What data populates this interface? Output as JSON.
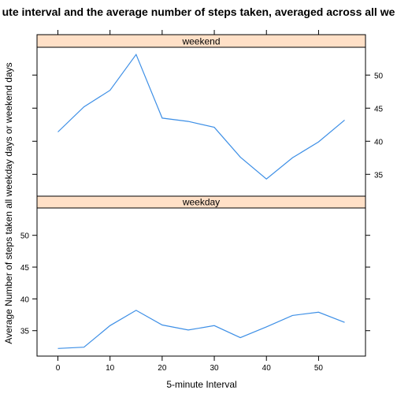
{
  "chart_data": {
    "type": "line",
    "title": "ute interval and the average number of steps taken, averaged across all we",
    "xlabel": "5-minute Interval",
    "ylabel": "Average Number of steps taken all weekday days or weekend days",
    "xlim": [
      -4,
      59
    ],
    "x_ticks": [
      0,
      10,
      20,
      30,
      40,
      50
    ],
    "line_color": "#3d8fe6",
    "strip_color": "#ffe0c7",
    "panels": [
      {
        "name": "weekend",
        "ylim": [
          31.7,
          54.2
        ],
        "y_ticks": [
          35,
          40,
          45,
          50
        ],
        "y_axis_side": "right",
        "x": [
          0,
          5,
          10,
          15,
          20,
          25,
          30,
          35,
          40,
          45,
          50,
          55
        ],
        "y": [
          41.4,
          45.2,
          47.7,
          53.1,
          43.5,
          43.0,
          42.1,
          37.6,
          34.3,
          37.5,
          39.9,
          43.2
        ]
      },
      {
        "name": "weekday",
        "ylim": [
          31.0,
          54.3
        ],
        "y_ticks": [
          35,
          40,
          45,
          50
        ],
        "y_axis_side": "left",
        "x": [
          0,
          5,
          10,
          15,
          20,
          25,
          30,
          35,
          40,
          45,
          50,
          55
        ],
        "y": [
          32.2,
          32.4,
          35.8,
          38.2,
          35.9,
          35.1,
          35.8,
          33.9,
          35.6,
          37.4,
          37.9,
          36.3
        ]
      }
    ]
  }
}
